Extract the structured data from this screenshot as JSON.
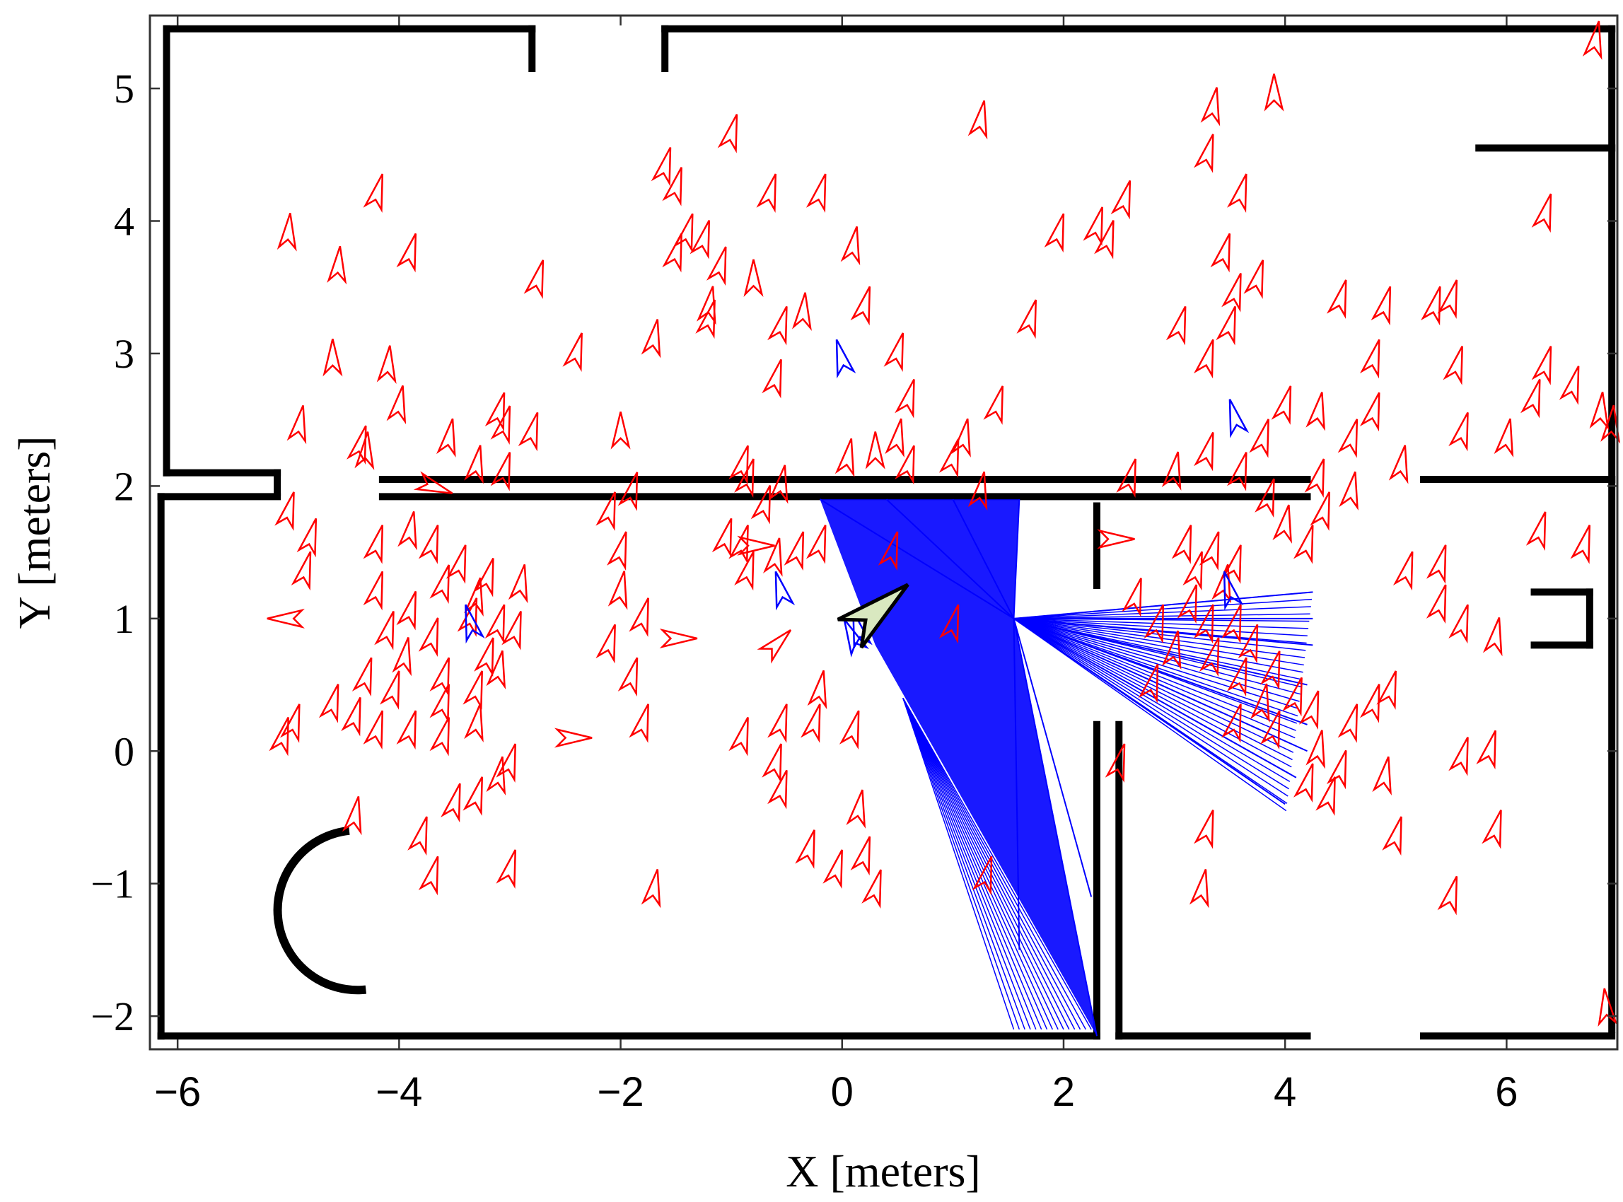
{
  "chart_data": {
    "type": "scatter",
    "title": "",
    "xlabel": "X [meters]",
    "ylabel": "Y [meters]",
    "xlim": [
      -6.25,
      7.0
    ],
    "ylim": [
      -2.25,
      5.55
    ],
    "xticks": [
      -6,
      -4,
      -2,
      0,
      2,
      4,
      6
    ],
    "yticks": [
      -2,
      -1,
      0,
      1,
      2,
      3,
      4,
      5
    ],
    "xtick_labels": [
      "−6",
      "−4",
      "−2",
      "0",
      "2",
      "4",
      "6"
    ],
    "ytick_labels": [
      "−2",
      "−1",
      "0",
      "1",
      "2",
      "3",
      "4",
      "5"
    ],
    "grid": false,
    "legend": "none",
    "colors": {
      "particles": "#ff0000",
      "best_particles": "#0000ff",
      "laser_rays": "#0000ff",
      "robot_pose": "#d9e8c0",
      "map_walls": "#000000"
    },
    "robot_pose": {
      "x": 0.3,
      "y": 1.05,
      "heading_deg": 40
    },
    "laser_scan": {
      "origin": {
        "x": 1.55,
        "y": 1.0
      },
      "endpoints": [
        [
          -0.2,
          1.9
        ],
        [
          1.6,
          1.9
        ],
        [
          1.0,
          1.9
        ],
        [
          0.4,
          1.9
        ],
        [
          2.25,
          -1.1
        ],
        [
          2.3,
          -2.15
        ],
        [
          1.6,
          -1.5
        ],
        [
          4.25,
          1.2
        ],
        [
          4.25,
          1.0
        ],
        [
          4.25,
          0.8
        ],
        [
          4.2,
          0.5
        ],
        [
          4.2,
          0.2
        ],
        [
          4.2,
          0.0
        ],
        [
          4.1,
          -0.2
        ],
        [
          4.0,
          -0.4
        ]
      ]
    },
    "walls": [
      [
        [
          -6.1,
          5.45
        ],
        [
          -2.8,
          5.45
        ]
      ],
      [
        [
          -2.8,
          5.45
        ],
        [
          -2.8,
          5.15
        ]
      ],
      [
        [
          -1.6,
          5.45
        ],
        [
          -1.6,
          5.15
        ]
      ],
      [
        [
          -1.6,
          5.45
        ],
        [
          6.95,
          5.45
        ]
      ],
      [
        [
          -6.1,
          5.45
        ],
        [
          -6.1,
          2.1
        ]
      ],
      [
        [
          -6.1,
          2.1
        ],
        [
          -5.1,
          2.1
        ]
      ],
      [
        [
          -5.1,
          2.1
        ],
        [
          -5.1,
          1.95
        ]
      ],
      [
        [
          -4.15,
          2.05
        ],
        [
          4.2,
          2.05
        ]
      ],
      [
        [
          -4.15,
          1.92
        ],
        [
          4.2,
          1.92
        ]
      ],
      [
        [
          5.25,
          2.05
        ],
        [
          6.95,
          2.05
        ]
      ],
      [
        [
          5.75,
          4.55
        ],
        [
          6.95,
          4.55
        ]
      ],
      [
        [
          6.95,
          5.45
        ],
        [
          6.95,
          -2.1
        ]
      ],
      [
        [
          -6.15,
          1.92
        ],
        [
          -5.1,
          1.92
        ]
      ],
      [
        [
          -6.15,
          1.92
        ],
        [
          -6.15,
          -2.15
        ]
      ],
      [
        [
          -6.15,
          -2.15
        ],
        [
          2.3,
          -2.15
        ]
      ],
      [
        [
          2.3,
          0.2
        ],
        [
          2.3,
          -2.15
        ]
      ],
      [
        [
          2.5,
          0.2
        ],
        [
          2.5,
          -2.15
        ]
      ],
      [
        [
          2.5,
          -2.15
        ],
        [
          4.2,
          -2.15
        ]
      ],
      [
        [
          5.25,
          -2.15
        ],
        [
          6.95,
          -2.15
        ]
      ],
      [
        [
          2.3,
          1.85
        ],
        [
          2.3,
          1.25
        ]
      ],
      [
        [
          6.25,
          1.2
        ],
        [
          6.75,
          1.2
        ]
      ],
      [
        [
          6.75,
          1.2
        ],
        [
          6.75,
          0.8
        ]
      ],
      [
        [
          6.25,
          0.8
        ],
        [
          6.75,
          0.8
        ]
      ]
    ],
    "red_particles": [
      [
        -5.0,
        3.9,
        -50
      ],
      [
        -4.55,
        3.65,
        -50
      ],
      [
        -3.9,
        3.75,
        -60
      ],
      [
        -4.2,
        4.2,
        -60
      ],
      [
        -4.6,
        2.95,
        -45
      ],
      [
        -4.1,
        2.9,
        -50
      ],
      [
        -4.0,
        2.6,
        -55
      ],
      [
        -4.9,
        2.45,
        -55
      ],
      [
        -4.35,
        2.3,
        -60
      ],
      [
        -4.3,
        2.25,
        -50
      ],
      [
        -3.55,
        2.35,
        -55
      ],
      [
        -3.1,
        2.55,
        -60
      ],
      [
        -3.05,
        2.45,
        -60
      ],
      [
        -2.8,
        2.4,
        -60
      ],
      [
        -3.3,
        2.15,
        -55
      ],
      [
        -3.05,
        2.1,
        -60
      ],
      [
        -2.0,
        2.4,
        -45
      ],
      [
        -1.7,
        3.1,
        -55
      ],
      [
        -2.4,
        3.0,
        -60
      ],
      [
        -2.75,
        3.55,
        -60
      ],
      [
        -1.25,
        3.85,
        -60
      ],
      [
        -1.1,
        3.65,
        -60
      ],
      [
        -0.8,
        3.55,
        -45
      ],
      [
        -0.55,
        3.2,
        -60
      ],
      [
        -0.6,
        2.8,
        -60
      ],
      [
        -0.35,
        3.3,
        -50
      ],
      [
        -0.2,
        4.2,
        -60
      ],
      [
        -0.65,
        4.2,
        -60
      ],
      [
        0.1,
        3.8,
        -55
      ],
      [
        0.2,
        3.35,
        -60
      ],
      [
        0.5,
        3.0,
        -60
      ],
      [
        0.6,
        2.65,
        -60
      ],
      [
        0.5,
        2.35,
        -55
      ],
      [
        0.3,
        2.25,
        -45
      ],
      [
        0.6,
        2.15,
        -60
      ],
      [
        1.0,
        2.2,
        -60
      ],
      [
        1.4,
        2.6,
        -60
      ],
      [
        1.1,
        2.35,
        -55
      ],
      [
        1.25,
        1.95,
        -55
      ],
      [
        -0.9,
        2.15,
        -60
      ],
      [
        -0.85,
        2.05,
        -60
      ],
      [
        -0.7,
        1.85,
        -60
      ],
      [
        -0.55,
        2.0,
        -55
      ],
      [
        -0.9,
        1.55,
        -60
      ],
      [
        -0.6,
        1.45,
        -55
      ],
      [
        -1.05,
        1.6,
        -60
      ],
      [
        -0.85,
        1.35,
        -60
      ],
      [
        -0.4,
        1.5,
        -60
      ],
      [
        -0.2,
        1.55,
        -60
      ],
      [
        0.05,
        2.2,
        -55
      ],
      [
        -1.0,
        4.65,
        -60
      ],
      [
        -1.6,
        4.4,
        -60
      ],
      [
        -1.5,
        4.25,
        -60
      ],
      [
        -1.4,
        3.9,
        -60
      ],
      [
        -1.5,
        3.75,
        -60
      ],
      [
        -1.2,
        3.35,
        -55
      ],
      [
        -1.2,
        3.25,
        -60
      ],
      [
        1.25,
        4.75,
        -55
      ],
      [
        1.95,
        3.9,
        -60
      ],
      [
        2.3,
        3.95,
        -60
      ],
      [
        2.55,
        4.15,
        -60
      ],
      [
        2.4,
        3.85,
        -60
      ],
      [
        3.35,
        4.85,
        -55
      ],
      [
        3.9,
        4.95,
        -45
      ],
      [
        3.3,
        4.5,
        -60
      ],
      [
        3.6,
        4.2,
        -60
      ],
      [
        3.45,
        3.75,
        -60
      ],
      [
        3.55,
        3.45,
        -60
      ],
      [
        3.75,
        3.55,
        -60
      ],
      [
        3.5,
        3.2,
        -60
      ],
      [
        3.3,
        2.95,
        -60
      ],
      [
        3.05,
        3.2,
        -60
      ],
      [
        1.7,
        3.25,
        -60
      ],
      [
        4.5,
        3.4,
        -60
      ],
      [
        4.9,
        3.35,
        -60
      ],
      [
        5.5,
        3.4,
        -60
      ],
      [
        5.35,
        3.35,
        -60
      ],
      [
        4.8,
        2.95,
        -60
      ],
      [
        5.55,
        2.9,
        -60
      ],
      [
        6.35,
        2.9,
        -60
      ],
      [
        6.6,
        2.75,
        -60
      ],
      [
        6.25,
        2.65,
        -60
      ],
      [
        6.85,
        2.55,
        -50
      ],
      [
        6.95,
        2.45,
        -50
      ],
      [
        5.6,
        2.4,
        -60
      ],
      [
        6.0,
        2.35,
        -55
      ],
      [
        4.8,
        2.55,
        -60
      ],
      [
        4.6,
        2.35,
        -60
      ],
      [
        4.3,
        2.55,
        -55
      ],
      [
        4.0,
        2.6,
        -60
      ],
      [
        3.8,
        2.35,
        -60
      ],
      [
        3.3,
        2.25,
        -60
      ],
      [
        3.0,
        2.1,
        -55
      ],
      [
        2.6,
        2.05,
        -60
      ],
      [
        3.6,
        2.1,
        -60
      ],
      [
        4.3,
        2.05,
        -60
      ],
      [
        4.6,
        1.95,
        -55
      ],
      [
        5.05,
        2.15,
        -55
      ],
      [
        6.35,
        4.05,
        -60
      ],
      [
        6.8,
        5.35,
        -55
      ],
      [
        -5.0,
        1.8,
        -60
      ],
      [
        -4.8,
        1.6,
        -60
      ],
      [
        -4.85,
        1.35,
        -60
      ],
      [
        -4.2,
        1.55,
        -60
      ],
      [
        -3.9,
        1.65,
        -55
      ],
      [
        -3.7,
        1.55,
        -60
      ],
      [
        -3.45,
        1.4,
        -60
      ],
      [
        -3.6,
        1.25,
        -60
      ],
      [
        -3.3,
        1.15,
        -55
      ],
      [
        -3.2,
        1.3,
        -60
      ],
      [
        -3.35,
        1.0,
        -60
      ],
      [
        -4.2,
        1.2,
        -60
      ],
      [
        -3.9,
        1.05,
        -60
      ],
      [
        -4.1,
        0.9,
        -60
      ],
      [
        -3.7,
        0.85,
        -60
      ],
      [
        -3.95,
        0.7,
        -55
      ],
      [
        -3.6,
        0.55,
        -60
      ],
      [
        -4.3,
        0.55,
        -60
      ],
      [
        -4.05,
        0.45,
        -60
      ],
      [
        -3.6,
        0.35,
        -60
      ],
      [
        -3.3,
        0.45,
        -60
      ],
      [
        -3.1,
        0.6,
        -55
      ],
      [
        -2.95,
        0.9,
        -60
      ],
      [
        -3.2,
        0.7,
        -60
      ],
      [
        -4.6,
        0.35,
        -60
      ],
      [
        -4.4,
        0.25,
        -60
      ],
      [
        -4.2,
        0.15,
        -60
      ],
      [
        -4.95,
        0.2,
        -60
      ],
      [
        -5.05,
        0.1,
        -60
      ],
      [
        -3.9,
        0.15,
        -60
      ],
      [
        -3.6,
        0.1,
        -60
      ],
      [
        -3.3,
        0.2,
        -55
      ],
      [
        -3.0,
        -0.1,
        -60
      ],
      [
        -3.1,
        -0.2,
        -55
      ],
      [
        -3.3,
        -0.35,
        -60
      ],
      [
        -3.5,
        -0.4,
        -60
      ],
      [
        -4.4,
        -0.5,
        -55
      ],
      [
        -3.8,
        -0.65,
        -60
      ],
      [
        -3.7,
        -0.95,
        -60
      ],
      [
        -3.0,
        -0.9,
        -60
      ],
      [
        -2.1,
        1.8,
        -60
      ],
      [
        -1.9,
        1.95,
        -60
      ],
      [
        -2.0,
        1.5,
        -60
      ],
      [
        -2.0,
        1.2,
        -55
      ],
      [
        -1.8,
        1.0,
        -60
      ],
      [
        -2.1,
        0.8,
        -60
      ],
      [
        -1.9,
        0.55,
        -60
      ],
      [
        -1.8,
        0.2,
        -60
      ],
      [
        -1.7,
        -1.05,
        -55
      ],
      [
        -0.9,
        0.1,
        -60
      ],
      [
        -0.55,
        0.2,
        -60
      ],
      [
        -0.25,
        0.2,
        -60
      ],
      [
        -0.2,
        0.45,
        -55
      ],
      [
        0.1,
        0.15,
        -60
      ],
      [
        -0.6,
        -0.1,
        -60
      ],
      [
        -0.55,
        -0.3,
        -60
      ],
      [
        -0.3,
        -0.75,
        -60
      ],
      [
        0.15,
        -0.45,
        -55
      ],
      [
        0.2,
        -0.8,
        -60
      ],
      [
        -0.05,
        -0.9,
        -60
      ],
      [
        0.3,
        -1.05,
        -60
      ],
      [
        0.45,
        1.5,
        -60
      ],
      [
        1.3,
        -0.95,
        -60
      ],
      [
        2.5,
        -0.1,
        -60
      ],
      [
        2.85,
        0.95,
        -60
      ],
      [
        2.65,
        1.15,
        -60
      ],
      [
        3.0,
        0.75,
        -55
      ],
      [
        2.8,
        0.5,
        -60
      ],
      [
        3.1,
        1.55,
        -60
      ],
      [
        3.2,
        1.35,
        -60
      ],
      [
        3.35,
        1.5,
        -60
      ],
      [
        3.45,
        1.25,
        -55
      ],
      [
        3.55,
        1.4,
        -60
      ],
      [
        3.15,
        1.1,
        -60
      ],
      [
        3.3,
        0.95,
        -60
      ],
      [
        3.55,
        0.95,
        -60
      ],
      [
        3.7,
        0.8,
        -60
      ],
      [
        3.35,
        0.7,
        -60
      ],
      [
        3.6,
        0.55,
        -60
      ],
      [
        3.9,
        0.6,
        -60
      ],
      [
        3.8,
        0.35,
        -55
      ],
      [
        3.55,
        0.2,
        -60
      ],
      [
        3.9,
        0.15,
        -60
      ],
      [
        4.1,
        0.4,
        -60
      ],
      [
        4.25,
        0.3,
        -60
      ],
      [
        4.3,
        0.0,
        -55
      ],
      [
        4.2,
        -0.25,
        -60
      ],
      [
        4.4,
        -0.35,
        -60
      ],
      [
        3.3,
        -0.6,
        -60
      ],
      [
        3.25,
        -1.05,
        -55
      ],
      [
        3.85,
        1.9,
        -60
      ],
      [
        4.0,
        1.7,
        -55
      ],
      [
        4.2,
        1.55,
        -60
      ],
      [
        4.35,
        1.8,
        -60
      ],
      [
        4.6,
        0.2,
        -60
      ],
      [
        4.8,
        0.35,
        -60
      ],
      [
        4.95,
        0.45,
        -60
      ],
      [
        4.5,
        -0.15,
        -60
      ],
      [
        4.9,
        -0.2,
        -55
      ],
      [
        5.0,
        -0.65,
        -60
      ],
      [
        5.6,
        -0.05,
        -60
      ],
      [
        5.85,
        0.0,
        -60
      ],
      [
        5.9,
        -0.6,
        -60
      ],
      [
        5.5,
        -1.1,
        -60
      ],
      [
        5.4,
        1.1,
        -60
      ],
      [
        5.6,
        0.95,
        -60
      ],
      [
        5.9,
        0.85,
        -55
      ],
      [
        5.1,
        1.35,
        -60
      ],
      [
        5.4,
        1.4,
        -60
      ],
      [
        6.3,
        1.65,
        -60
      ],
      [
        6.7,
        1.55,
        -60
      ],
      [
        6.9,
        -1.95,
        -40
      ],
      [
        1.0,
        0.95,
        -60
      ],
      [
        -2.9,
        1.25,
        -55
      ],
      [
        -3.1,
        0.95,
        -60
      ]
    ],
    "red_particles_alt_heading": [
      [
        -5.0,
        1.0,
        180
      ],
      [
        -1.5,
        0.85,
        0
      ],
      [
        -2.45,
        0.1,
        0
      ],
      [
        -0.6,
        0.8,
        45
      ],
      [
        2.45,
        1.6,
        0
      ],
      [
        -0.8,
        1.55,
        0
      ],
      [
        -3.7,
        2.0,
        -20
      ]
    ],
    "blue_particles": [
      [
        0.0,
        2.95,
        -30
      ],
      [
        3.55,
        2.5,
        -30
      ],
      [
        -0.55,
        1.2,
        -30
      ],
      [
        -3.35,
        0.95,
        -30
      ],
      [
        0.1,
        0.85,
        -20
      ],
      [
        0.15,
        0.9,
        -30
      ],
      [
        3.5,
        1.2,
        -30
      ]
    ]
  }
}
